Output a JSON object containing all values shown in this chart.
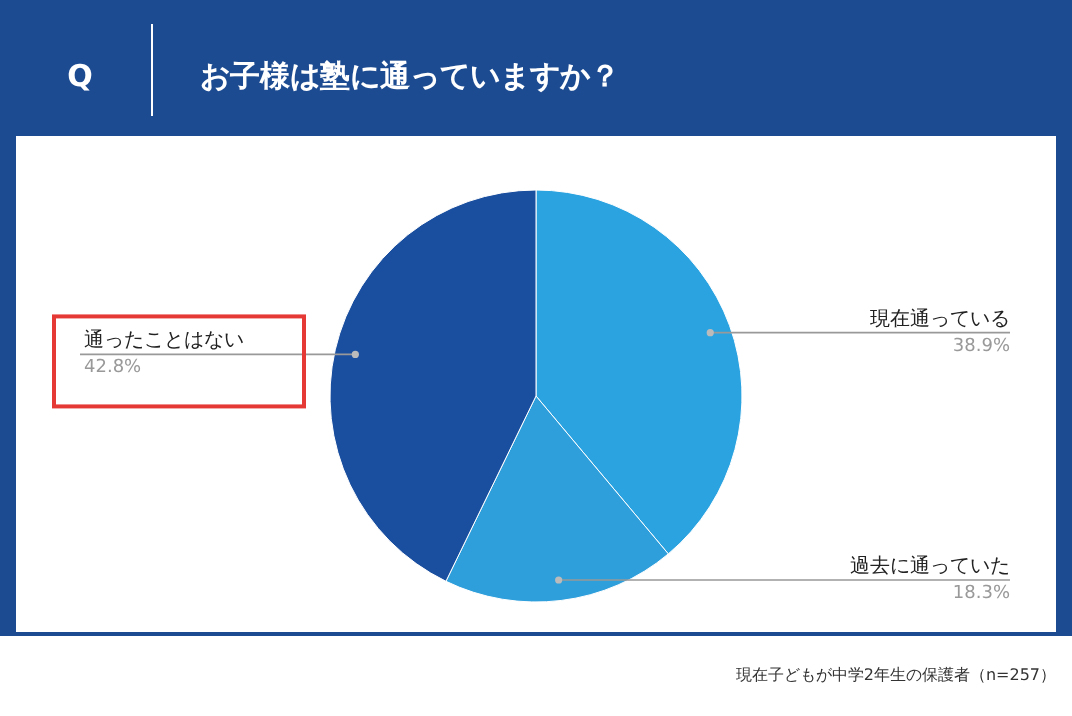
{
  "chart_data": {
    "type": "pie",
    "title": "お子様は塾に通っていますか？",
    "categories": [
      "現在通っている",
      "過去に通っていた",
      "通ったことはない"
    ],
    "values": [
      38.9,
      18.3,
      42.8
    ],
    "value_labels": [
      "38.9%",
      "18.3%",
      "42.8%"
    ],
    "colors": [
      "#2ba3e1",
      "#2f9fdc",
      "#1a4e9f"
    ],
    "annotations": [
      "Q",
      "現在子どもが中学2年生の保護者（n=257）"
    ]
  }
}
